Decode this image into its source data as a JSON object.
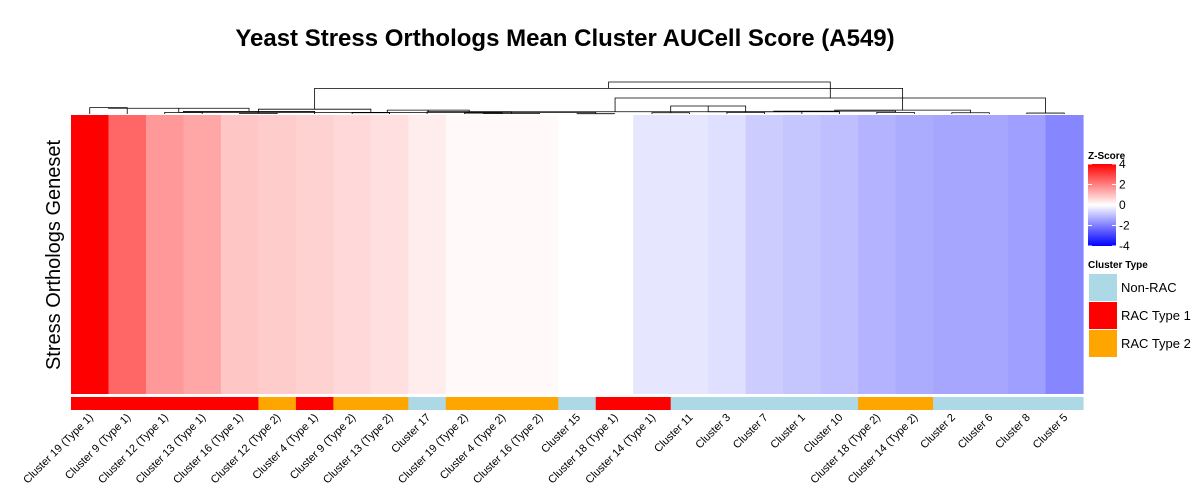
{
  "chart_data": {
    "type": "heatmap",
    "title": "Yeast Stress Orthologs Mean Cluster AUCell Score (A549)",
    "ylabel": "Stress Orthologs Geneset",
    "columns": [
      "Cluster 19 (Type 1)",
      "Cluster 9 (Type 1)",
      "Cluster 12 (Type 1)",
      "Cluster 13 (Type 1)",
      "Cluster 16 (Type 1)",
      "Cluster 12 (Type 2)",
      "Cluster 4 (Type 1)",
      "Cluster 9 (Type 2)",
      "Cluster 13 (Type 2)",
      "Cluster 17",
      "Cluster 19 (Type 2)",
      "Cluster 4 (Type 2)",
      "Cluster 16 (Type 2)",
      "Cluster 15",
      "Cluster 18 (Type 1)",
      "Cluster 14 (Type 1)",
      "Cluster 11",
      "Cluster 3",
      "Cluster 7",
      "Cluster 1",
      "Cluster 10",
      "Cluster 18 (Type 2)",
      "Cluster 14 (Type 2)",
      "Cluster 2",
      "Cluster 6",
      "Cluster 8",
      "Cluster 5"
    ],
    "zscores": [
      4.5,
      2.4,
      1.6,
      1.4,
      0.9,
      0.8,
      0.7,
      0.6,
      0.5,
      0.3,
      0.1,
      0.1,
      0.1,
      0.0,
      0.0,
      -0.4,
      -0.4,
      -0.5,
      -0.8,
      -0.9,
      -1.0,
      -1.2,
      -1.3,
      -1.4,
      -1.4,
      -1.5,
      -1.9
    ],
    "cluster_types": [
      "RAC Type 1",
      "RAC Type 1",
      "RAC Type 1",
      "RAC Type 1",
      "RAC Type 1",
      "RAC Type 2",
      "RAC Type 1",
      "RAC Type 2",
      "RAC Type 2",
      "Non-RAC",
      "RAC Type 2",
      "RAC Type 2",
      "RAC Type 2",
      "Non-RAC",
      "RAC Type 1",
      "RAC Type 1",
      "Non-RAC",
      "Non-RAC",
      "Non-RAC",
      "Non-RAC",
      "Non-RAC",
      "RAC Type 2",
      "RAC Type 2",
      "Non-RAC",
      "Non-RAC",
      "Non-RAC",
      "Non-RAC"
    ],
    "color_scale": {
      "title": "Z-Score",
      "stops": [
        {
          "value": -4,
          "color": "#0000ff"
        },
        {
          "value": 0,
          "color": "#ffffff"
        },
        {
          "value": 4,
          "color": "#ff0000"
        }
      ],
      "ticks": [
        "4",
        "2",
        "0",
        "-2",
        "-4"
      ],
      "tick_values": [
        4,
        2,
        0,
        -2,
        -4
      ]
    },
    "type_legend": {
      "title": "Cluster Type",
      "items": [
        {
          "label": "Non-RAC",
          "color": "#add8e6"
        },
        {
          "label": "RAC Type 1",
          "color": "#ff0000"
        },
        {
          "label": "RAC Type 2",
          "color": "#ffa500"
        }
      ]
    },
    "dendrogram": {
      "merges": [
        {
          "a": 0,
          "b": 1,
          "h": 0.2
        },
        {
          "a": 2,
          "b": 3,
          "h": 0.05
        },
        {
          "a": 4,
          "b": 5,
          "h": 0.02
        },
        {
          "a": 7,
          "b": 8,
          "h": 0.04
        },
        {
          "a": 6,
          "b": 28,
          "h": 0.08
        },
        {
          "a": 29,
          "b": 30,
          "h": 0.15
        },
        {
          "a": 27,
          "b": 31,
          "h": 0.18
        },
        {
          "a": 10,
          "b": 11,
          "h": 0.03
        },
        {
          "a": 13,
          "b": 14,
          "h": 0.01
        },
        {
          "a": 12,
          "b": 34,
          "h": 0.015
        },
        {
          "a": 33,
          "b": 35,
          "h": 0.05
        },
        {
          "a": 9,
          "b": 36,
          "h": 0.07
        },
        {
          "a": 15,
          "b": 16,
          "h": 0.04
        },
        {
          "a": 37,
          "b": 38,
          "h": 0.12
        },
        {
          "a": 17,
          "b": 18,
          "h": 0.05
        },
        {
          "a": 40,
          "b": 19,
          "h": 0.07
        },
        {
          "a": 39,
          "b": 41,
          "h": 0.25
        },
        {
          "a": 21,
          "b": 22,
          "h": 0.05
        },
        {
          "a": 20,
          "b": 43,
          "h": 0.07
        },
        {
          "a": 23,
          "b": 24,
          "h": 0.04
        },
        {
          "a": 44,
          "b": 45,
          "h": 0.09
        },
        {
          "a": 25,
          "b": 26,
          "h": 0.03
        },
        {
          "a": 46,
          "b": 47,
          "h": 0.12
        },
        {
          "a": 42,
          "b": 48,
          "h": 0.5
        },
        {
          "a": 32,
          "b": 49,
          "h": 0.8
        },
        {
          "a": 50,
          "b": 51,
          "h": 1.0
        }
      ]
    }
  }
}
